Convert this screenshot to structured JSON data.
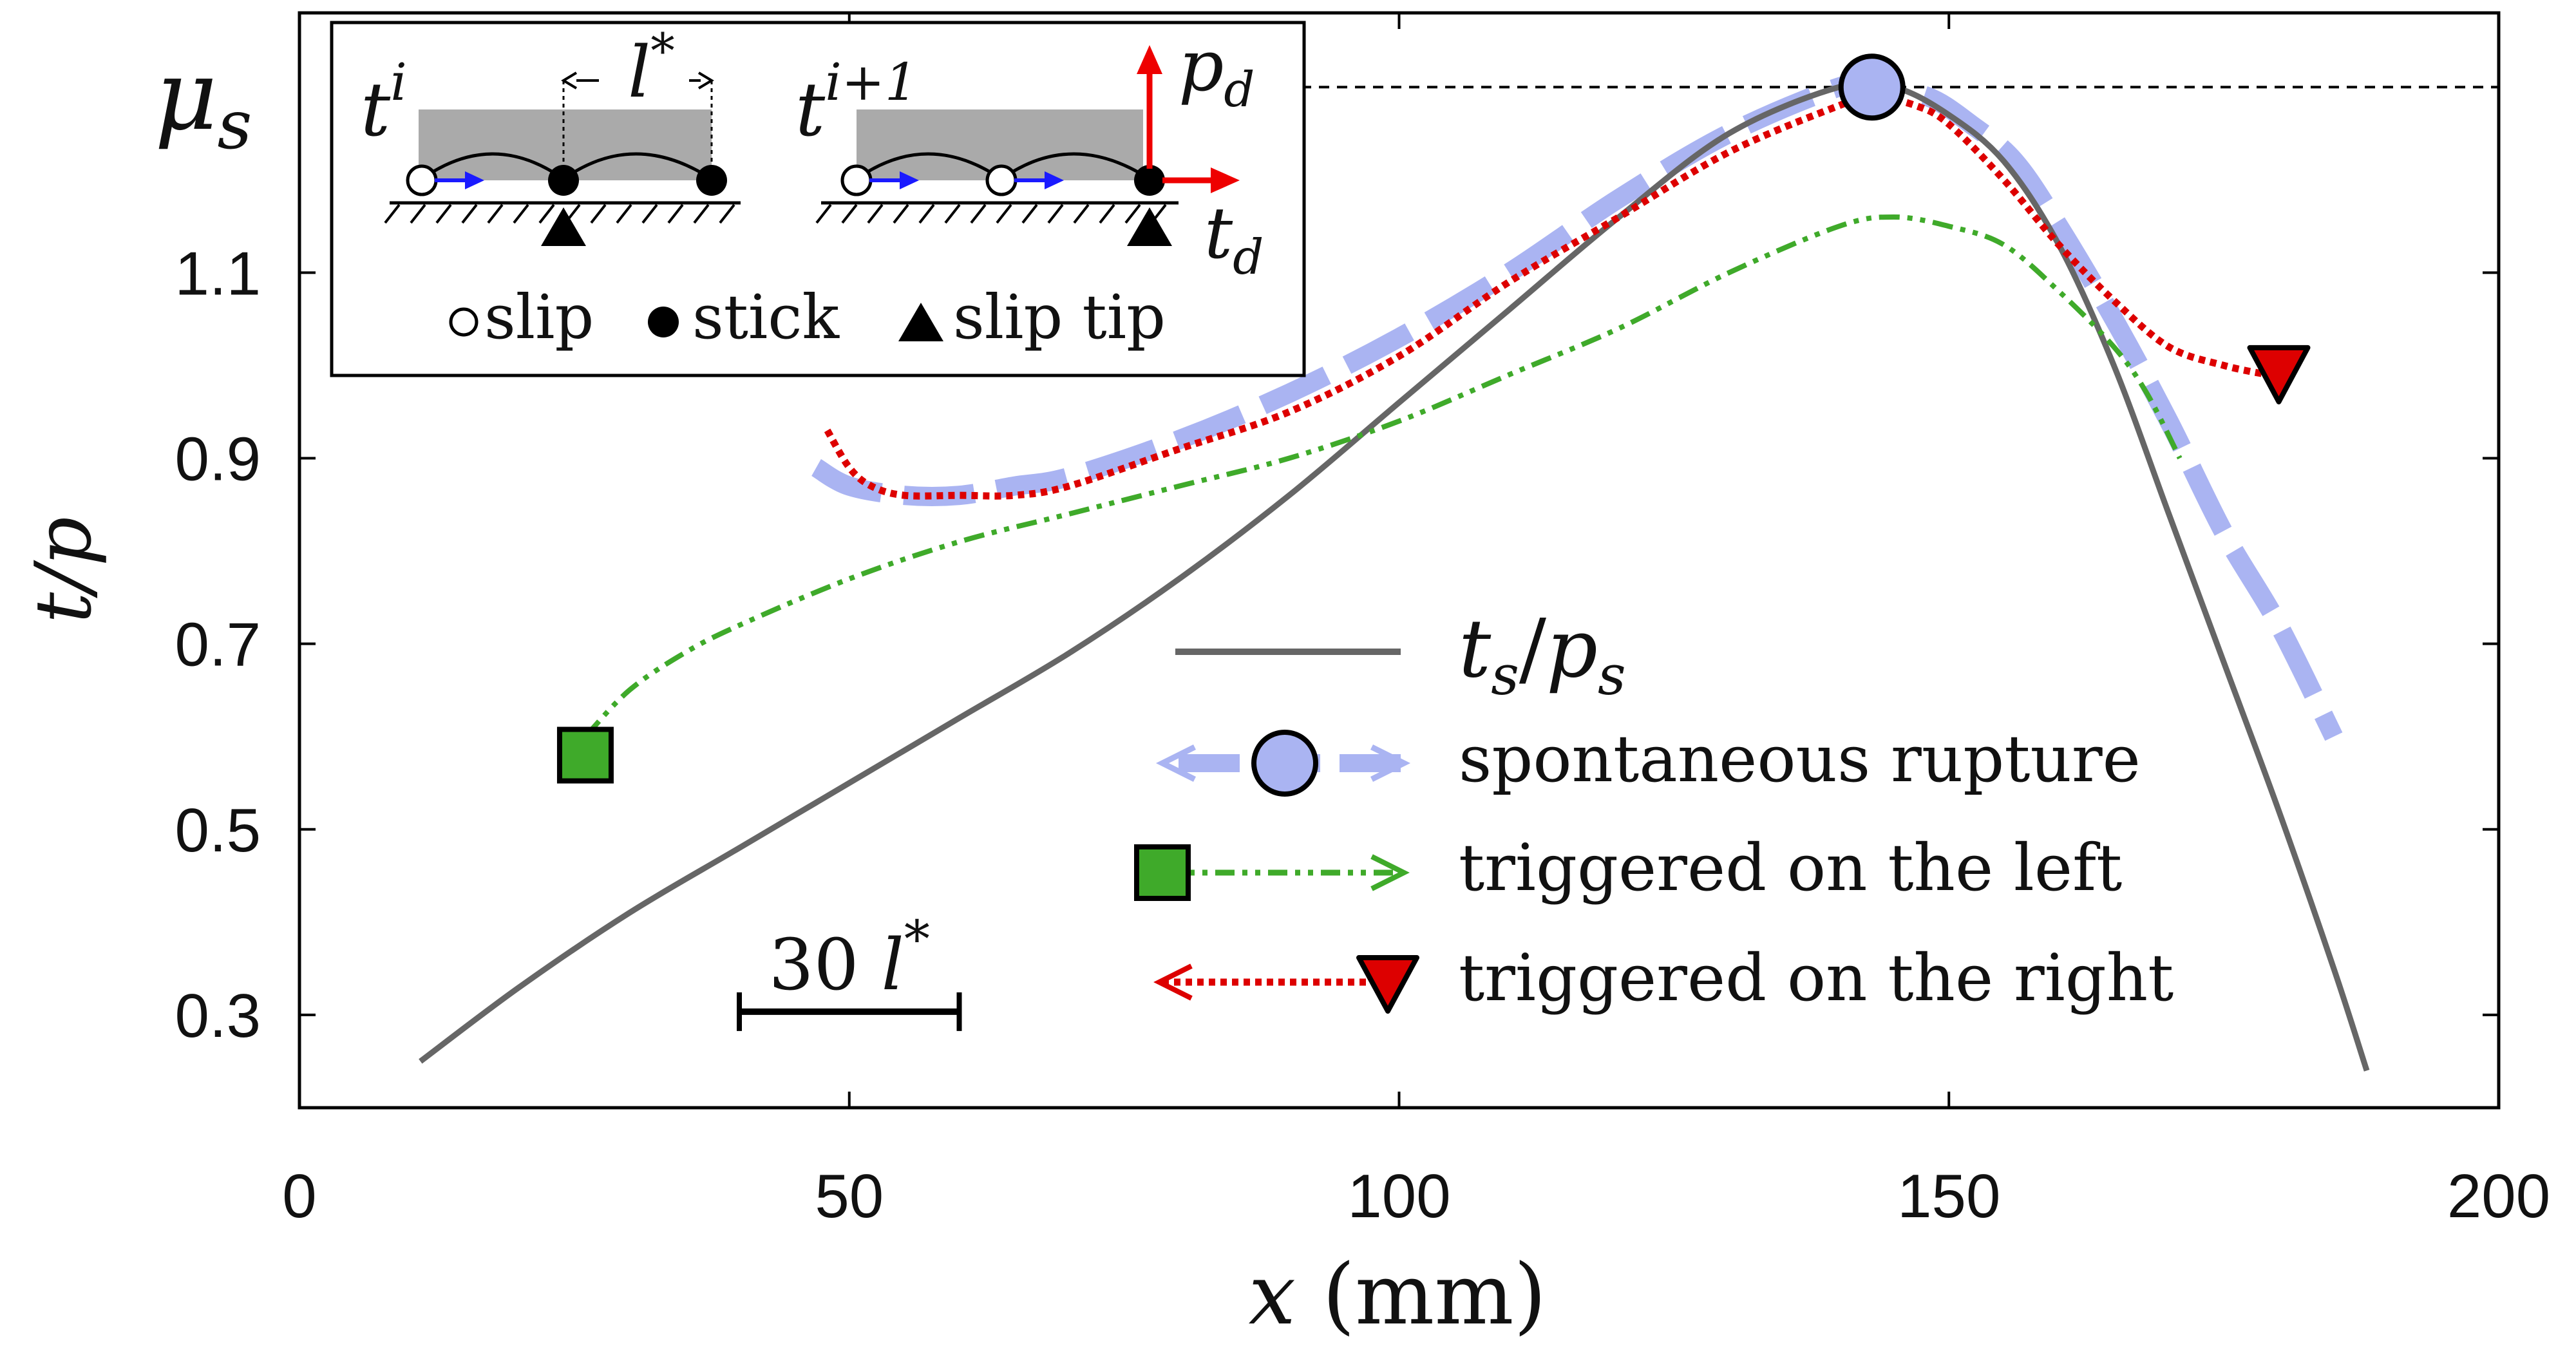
{
  "chart_data": {
    "type": "line",
    "xlabel": {
      "symbol": "x",
      "unit": "(mm)"
    },
    "ylabel": {
      "num": "t",
      "den": "p"
    },
    "xlim": [
      0,
      200
    ],
    "ylim": [
      0.2,
      1.38
    ],
    "x_ticks": [
      0,
      50,
      100,
      150,
      200
    ],
    "x_tick_labels": [
      "0",
      "50",
      "100",
      "150",
      "200"
    ],
    "y_ticks": [
      0.3,
      0.5,
      0.7,
      0.9,
      1.1
    ],
    "y_tick_labels": [
      "0.3",
      "0.5",
      "0.7",
      "0.9",
      "1.1"
    ],
    "mu_s": {
      "label_main": "μ",
      "label_sub": "s",
      "value": 1.3
    },
    "scale_bar": {
      "x_start": 40,
      "x_end": 60,
      "y": 0.3,
      "label_num": "30",
      "label_sym": "l",
      "label_sup": "*"
    },
    "colors": {
      "ts_ps": "#666666",
      "spontaneous": "#aab4f2",
      "left": "#3faa2a",
      "right": "#dd0000",
      "arrow": "#1a1aff"
    },
    "series": [
      {
        "name": "t_s/p_s",
        "legend_label": {
          "main": "t",
          "sub": "s",
          "slash": "/",
          "main2": "p",
          "sub2": "s"
        },
        "style": "solid",
        "x": [
          11,
          20,
          30,
          40,
          50,
          60,
          70,
          80,
          90,
          100,
          110,
          120,
          130,
          140,
          145,
          150,
          155,
          160,
          165,
          170,
          175,
          180,
          185,
          188
        ],
        "y": [
          0.25,
          0.33,
          0.41,
          0.48,
          0.55,
          0.62,
          0.69,
          0.77,
          0.86,
          0.96,
          1.06,
          1.16,
          1.25,
          1.3,
          1.3,
          1.27,
          1.22,
          1.13,
          1.0,
          0.84,
          0.68,
          0.52,
          0.35,
          0.24
        ]
      },
      {
        "name": "spontaneous rupture",
        "legend_label": "spontaneous rupture",
        "style": "thick-dashed",
        "x": [
          47,
          50,
          55,
          60,
          65,
          70,
          80,
          90,
          100,
          110,
          120,
          130,
          140,
          143,
          148,
          152,
          156,
          160,
          165,
          170,
          175,
          180,
          185
        ],
        "y": [
          0.89,
          0.87,
          0.86,
          0.86,
          0.87,
          0.88,
          0.92,
          0.97,
          1.03,
          1.1,
          1.18,
          1.25,
          1.3,
          1.3,
          1.29,
          1.26,
          1.22,
          1.15,
          1.05,
          0.94,
          0.82,
          0.72,
          0.6
        ],
        "marker": {
          "shape": "circle",
          "x": 143,
          "y": 1.3
        }
      },
      {
        "name": "triggered on the left",
        "legend_label": "triggered on the left",
        "style": "dash-dot-dot",
        "x": [
          26,
          30,
          35,
          40,
          50,
          60,
          70,
          80,
          90,
          100,
          110,
          120,
          130,
          140,
          145,
          150,
          155,
          160,
          165,
          168,
          171
        ],
        "y": [
          0.6,
          0.65,
          0.69,
          0.72,
          0.77,
          0.81,
          0.84,
          0.87,
          0.9,
          0.94,
          0.99,
          1.04,
          1.1,
          1.15,
          1.16,
          1.15,
          1.13,
          1.08,
          1.02,
          0.97,
          0.9
        ],
        "marker": {
          "shape": "square",
          "x": 26,
          "y": 0.58
        }
      },
      {
        "name": "triggered on the right",
        "legend_label": "triggered on the right",
        "style": "dotted",
        "x": [
          48,
          50,
          52,
          55,
          60,
          65,
          70,
          80,
          90,
          100,
          110,
          120,
          130,
          140,
          143,
          147,
          150,
          155,
          160,
          165,
          170,
          175,
          179
        ],
        "y": [
          0.93,
          0.89,
          0.87,
          0.86,
          0.86,
          0.86,
          0.87,
          0.91,
          0.95,
          1.01,
          1.09,
          1.16,
          1.23,
          1.28,
          1.29,
          1.28,
          1.26,
          1.2,
          1.13,
          1.07,
          1.02,
          1.0,
          0.99
        ],
        "marker": {
          "shape": "triangle-down",
          "x": 180,
          "y": 0.99
        }
      }
    ],
    "inset": {
      "t_i_main": "t",
      "t_i_sup": "i",
      "t_ip1_main": "t",
      "t_ip1_sup": "i+1",
      "l_main": "l",
      "l_sup": "*",
      "pd_main": "p",
      "pd_sub": "d",
      "td_main": "t",
      "td_sub": "d",
      "legend_slip": "slip",
      "legend_stick": "stick",
      "legend_slip_tip": "slip tip"
    }
  }
}
